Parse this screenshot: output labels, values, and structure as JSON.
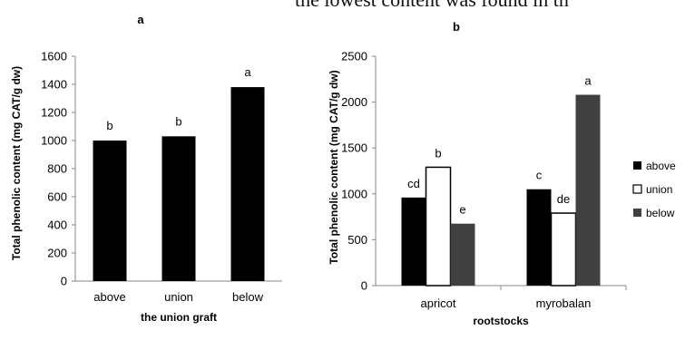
{
  "page_caption": "the lowest content was found in th",
  "chart_data": [
    {
      "type": "bar",
      "panel_label": "a",
      "title": "",
      "xlabel": "the union graft",
      "ylabel": "Total phenolic content (mg CAT/g dw)",
      "categories": [
        "above",
        "union",
        "below"
      ],
      "values": [
        1000,
        1030,
        1380
      ],
      "significance_letters": [
        "b",
        "b",
        "a"
      ],
      "ylim": [
        0,
        1600
      ],
      "yticks": [
        0,
        200,
        400,
        600,
        800,
        1000,
        1200,
        1400,
        1600
      ],
      "grid": false,
      "legend": null,
      "bar_color": "#000000"
    },
    {
      "type": "bar",
      "panel_label": "b",
      "title": "",
      "xlabel": "rootstocks",
      "ylabel": "Total phenolic content (mg CAT/g dw)",
      "categories": [
        "apricot",
        "myrobalan"
      ],
      "series": [
        {
          "name": "above",
          "values": [
            960,
            1050
          ],
          "letters": [
            "cd",
            "c"
          ],
          "color": "#000000"
        },
        {
          "name": "union",
          "values": [
            1290,
            790
          ],
          "letters": [
            "b",
            "de"
          ],
          "color": "#ffffff"
        },
        {
          "name": "below",
          "values": [
            675,
            2080
          ],
          "letters": [
            "e",
            "a"
          ],
          "color": "#404040"
        }
      ],
      "ylim": [
        0,
        2500
      ],
      "yticks": [
        0,
        500,
        1000,
        1500,
        2000,
        2500
      ],
      "grid": false,
      "legend": "right"
    }
  ]
}
